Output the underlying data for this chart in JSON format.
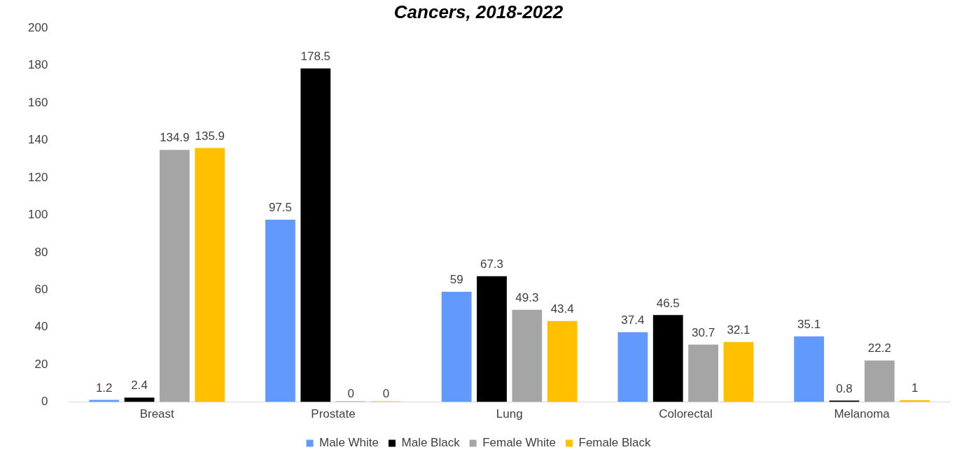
{
  "chart_data": {
    "type": "bar",
    "title": "Cancers, 2018-2022",
    "categories": [
      "Breast",
      "Prostate",
      "Lung",
      "Colorectal",
      "Melanoma"
    ],
    "series": [
      {
        "name": "Male White",
        "color": "#6199fc",
        "values": [
          1.2,
          97.5,
          59,
          37.4,
          35.1
        ]
      },
      {
        "name": "Male Black",
        "color": "#000000",
        "values": [
          2.4,
          178.5,
          67.3,
          46.5,
          0.8
        ]
      },
      {
        "name": "Female White",
        "color": "#a5a5a5",
        "values": [
          134.9,
          0,
          49.3,
          30.7,
          22.2
        ]
      },
      {
        "name": "Female Black",
        "color": "#ffc000",
        "values": [
          135.9,
          0,
          43.4,
          32.1,
          1
        ]
      }
    ],
    "ylim": [
      0,
      200
    ],
    "yticks": [
      0,
      20,
      40,
      60,
      80,
      100,
      120,
      140,
      160,
      180,
      200
    ],
    "grid": false,
    "legend": "bottom",
    "data_labels": true
  }
}
